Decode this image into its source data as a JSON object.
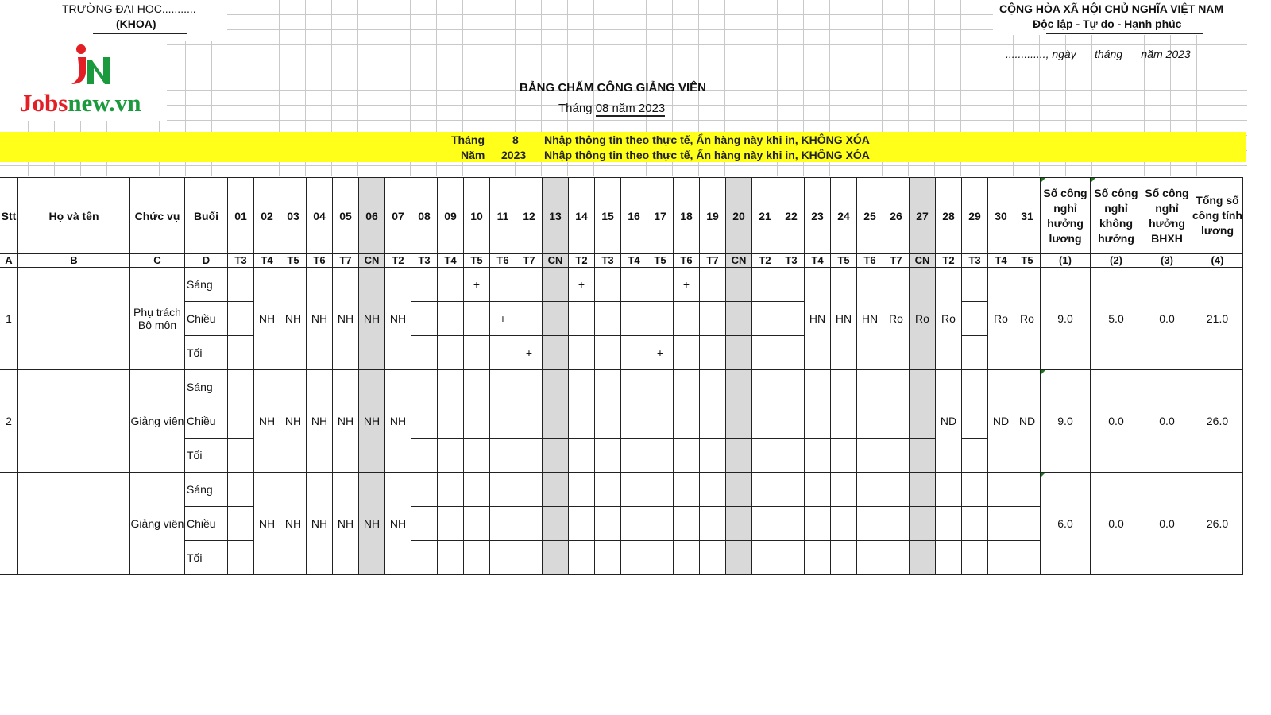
{
  "header_left": {
    "school": "TRƯỜNG ĐẠI HỌC...........",
    "faculty": "(KHOA)"
  },
  "logo": {
    "brand_part1": "Jobs",
    "brand_part2": "new.vn",
    "mark": "JN",
    "colors": {
      "red": "#e31e24",
      "green": "#1a9a3c"
    }
  },
  "header_right": {
    "nation": "CỘNG HÒA XÃ HỘI CHỦ NGHĨA VIỆT NAM",
    "motto": "Độc lập - Tự do - Hạnh phúc",
    "date_line": "............., ngày      tháng      năm 2023"
  },
  "title": {
    "main": "BẢNG CHẤM CÔNG GIẢNG VIÊN",
    "sub_prefix": "Tháng ",
    "sub_value": "08 năm 2023"
  },
  "input_band": {
    "color": "#ffff1a",
    "month_label": "Tháng",
    "month_value": "8",
    "year_label": "Năm",
    "year_value": "2023",
    "note": "Nhập thông tin theo thực tế, Ẩn hàng này khi in, KHÔNG XÓA"
  },
  "table": {
    "headers": {
      "stt": "Stt",
      "name": "Họ và tên",
      "position": "Chức vụ",
      "session": "Buổi"
    },
    "letters": {
      "stt": "A",
      "name": "B",
      "position": "C",
      "session": "D"
    },
    "days": [
      "01",
      "02",
      "03",
      "04",
      "05",
      "06",
      "07",
      "08",
      "09",
      "10",
      "11",
      "12",
      "13",
      "14",
      "15",
      "16",
      "17",
      "18",
      "19",
      "20",
      "21",
      "22",
      "23",
      "24",
      "25",
      "26",
      "27",
      "28",
      "29",
      "30",
      "31"
    ],
    "weekdays": [
      "T3",
      "T4",
      "T5",
      "T6",
      "T7",
      "CN",
      "T2",
      "T3",
      "T4",
      "T5",
      "T6",
      "T7",
      "CN",
      "T2",
      "T3",
      "T4",
      "T5",
      "T6",
      "T7",
      "CN",
      "T2",
      "T3",
      "T4",
      "T5",
      "T6",
      "T7",
      "CN",
      "T2",
      "T3",
      "T4",
      "T5"
    ],
    "sunday_color": "#d9d9d9",
    "summary_headers": [
      "Số công nghỉ hưởng lương",
      "Số công nghỉ không hưởng",
      "Số công nghỉ hưởng BHXH",
      "Tổng số công tính lương"
    ],
    "summary_codes": [
      "(1)",
      "(2)",
      "(3)",
      "(4)"
    ],
    "sessions": [
      "Sáng",
      "Chiều",
      "Tối"
    ],
    "employees": [
      {
        "stt": "1",
        "name": "",
        "position": "Phụ trách Bộ môn",
        "days": [
          [
            "",
            "",
            ""
          ],
          "NH",
          "NH",
          "NH",
          "NH",
          "NH",
          "NH",
          [
            "",
            "",
            ""
          ],
          [
            "",
            "",
            ""
          ],
          [
            "+",
            "",
            ""
          ],
          [
            "",
            "+",
            ""
          ],
          [
            "",
            "",
            "+"
          ],
          [
            "",
            "",
            ""
          ],
          [
            "+",
            "",
            ""
          ],
          [
            "",
            "",
            ""
          ],
          [
            "",
            "",
            ""
          ],
          [
            "",
            "",
            "+"
          ],
          [
            "+",
            "",
            ""
          ],
          [
            "",
            "",
            ""
          ],
          [
            "",
            "",
            ""
          ],
          [
            "",
            "",
            ""
          ],
          [
            "",
            "",
            ""
          ],
          "HN",
          "HN",
          "HN",
          "Ro",
          "Ro",
          "Ro",
          [
            "",
            "",
            ""
          ],
          "Ro",
          "Ro"
        ],
        "summary": [
          "9.0",
          "5.0",
          "0.0",
          "21.0"
        ]
      },
      {
        "stt": "2",
        "name": "",
        "position": "Giảng viên",
        "days": [
          [
            "",
            "",
            ""
          ],
          "NH",
          "NH",
          "NH",
          "NH",
          "NH",
          "NH",
          [
            "",
            "",
            ""
          ],
          [
            "",
            "",
            ""
          ],
          [
            "",
            "",
            ""
          ],
          [
            "",
            "",
            ""
          ],
          [
            "",
            "",
            ""
          ],
          [
            "",
            "",
            ""
          ],
          [
            "",
            "",
            ""
          ],
          [
            "",
            "",
            ""
          ],
          [
            "",
            "",
            ""
          ],
          [
            "",
            "",
            ""
          ],
          [
            "",
            "",
            ""
          ],
          [
            "",
            "",
            ""
          ],
          [
            "",
            "",
            ""
          ],
          [
            "",
            "",
            ""
          ],
          [
            "",
            "",
            ""
          ],
          [
            "",
            "",
            ""
          ],
          [
            "",
            "",
            ""
          ],
          [
            "",
            "",
            ""
          ],
          [
            "",
            "",
            ""
          ],
          [
            "",
            "",
            ""
          ],
          "ND",
          [
            "",
            "",
            ""
          ],
          "ND",
          "ND"
        ],
        "summary": [
          "9.0",
          "0.0",
          "0.0",
          "26.0"
        ]
      },
      {
        "stt": "",
        "name": "",
        "position": "Giảng viên",
        "days": [
          [
            "",
            "",
            ""
          ],
          "NH",
          "NH",
          "NH",
          "NH",
          "NH",
          "NH",
          [
            "",
            "",
            ""
          ],
          [
            "",
            "",
            ""
          ],
          [
            "",
            "",
            ""
          ],
          [
            "",
            "",
            ""
          ],
          [
            "",
            "",
            ""
          ],
          [
            "",
            "",
            ""
          ],
          [
            "",
            "",
            ""
          ],
          [
            "",
            "",
            ""
          ],
          [
            "",
            "",
            ""
          ],
          [
            "",
            "",
            ""
          ],
          [
            "",
            "",
            ""
          ],
          [
            "",
            "",
            ""
          ],
          [
            "",
            "",
            ""
          ],
          [
            "",
            "",
            ""
          ],
          [
            "",
            "",
            ""
          ],
          [
            "",
            "",
            ""
          ],
          [
            "",
            "",
            ""
          ],
          [
            "",
            "",
            ""
          ],
          [
            "",
            "",
            ""
          ],
          [
            "",
            "",
            ""
          ],
          [
            "",
            "",
            ""
          ],
          [
            "",
            "",
            ""
          ],
          [
            "",
            "",
            ""
          ],
          [
            "",
            "",
            ""
          ]
        ],
        "summary": [
          "6.0",
          "0.0",
          "0.0",
          "26.0"
        ]
      }
    ]
  }
}
